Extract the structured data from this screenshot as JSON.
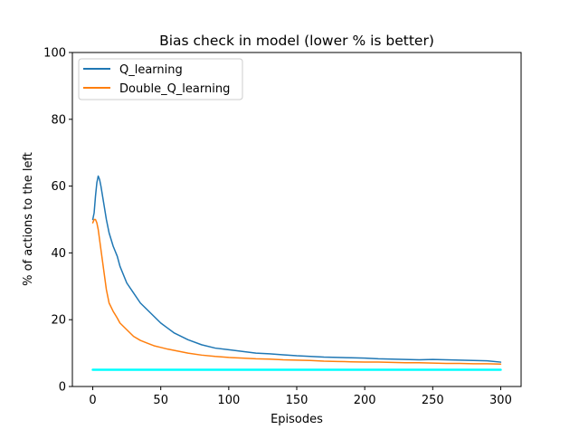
{
  "chart_data": {
    "type": "line",
    "title": "Bias check in model (lower % is better)",
    "xlabel": "Episodes",
    "ylabel": "% of actions to the left",
    "xlim": [
      -15,
      315
    ],
    "ylim": [
      0,
      100
    ],
    "xticks": [
      0,
      50,
      100,
      150,
      200,
      250,
      300
    ],
    "yticks": [
      0,
      20,
      40,
      60,
      80,
      100
    ],
    "grid": false,
    "legend_position": "top-left",
    "series": [
      {
        "name": "Q_learning",
        "color": "#1f77b4",
        "x": [
          0,
          1,
          2,
          3,
          4,
          5,
          6,
          8,
          10,
          12,
          15,
          18,
          20,
          25,
          30,
          35,
          40,
          45,
          50,
          55,
          60,
          70,
          80,
          90,
          100,
          110,
          120,
          130,
          140,
          150,
          160,
          170,
          180,
          190,
          200,
          210,
          220,
          230,
          240,
          250,
          260,
          270,
          280,
          290,
          300
        ],
        "y": [
          50,
          52,
          57,
          61,
          63,
          62,
          60,
          55,
          50,
          46,
          42,
          39,
          36,
          31,
          28,
          25,
          23,
          21,
          19,
          17.5,
          16,
          14,
          12.5,
          11.5,
          11,
          10.5,
          10,
          9.8,
          9.5,
          9.2,
          9,
          8.8,
          8.7,
          8.6,
          8.5,
          8.3,
          8.2,
          8.1,
          8,
          8.1,
          8,
          7.9,
          7.8,
          7.7,
          7.3
        ]
      },
      {
        "name": "Double_Q_learning",
        "color": "#ff7f0e",
        "x": [
          0,
          1,
          2,
          3,
          4,
          6,
          8,
          10,
          12,
          15,
          18,
          20,
          25,
          30,
          35,
          40,
          45,
          50,
          55,
          60,
          70,
          80,
          90,
          100,
          110,
          120,
          130,
          140,
          150,
          160,
          170,
          180,
          190,
          200,
          210,
          220,
          230,
          240,
          250,
          260,
          270,
          280,
          290,
          300
        ],
        "y": [
          49,
          50,
          50,
          49,
          47,
          41,
          35,
          29,
          25,
          22.5,
          20.5,
          19,
          17,
          15,
          13.8,
          13,
          12.2,
          11.7,
          11.2,
          10.8,
          10,
          9.4,
          9,
          8.7,
          8.5,
          8.3,
          8.2,
          8,
          7.9,
          7.8,
          7.6,
          7.5,
          7.4,
          7.3,
          7.3,
          7.2,
          7.1,
          7.1,
          7,
          6.9,
          6.9,
          6.8,
          6.8,
          6.7
        ]
      },
      {
        "color": "#00ffff",
        "x": [
          0,
          300
        ],
        "y": [
          5,
          5
        ]
      }
    ]
  }
}
